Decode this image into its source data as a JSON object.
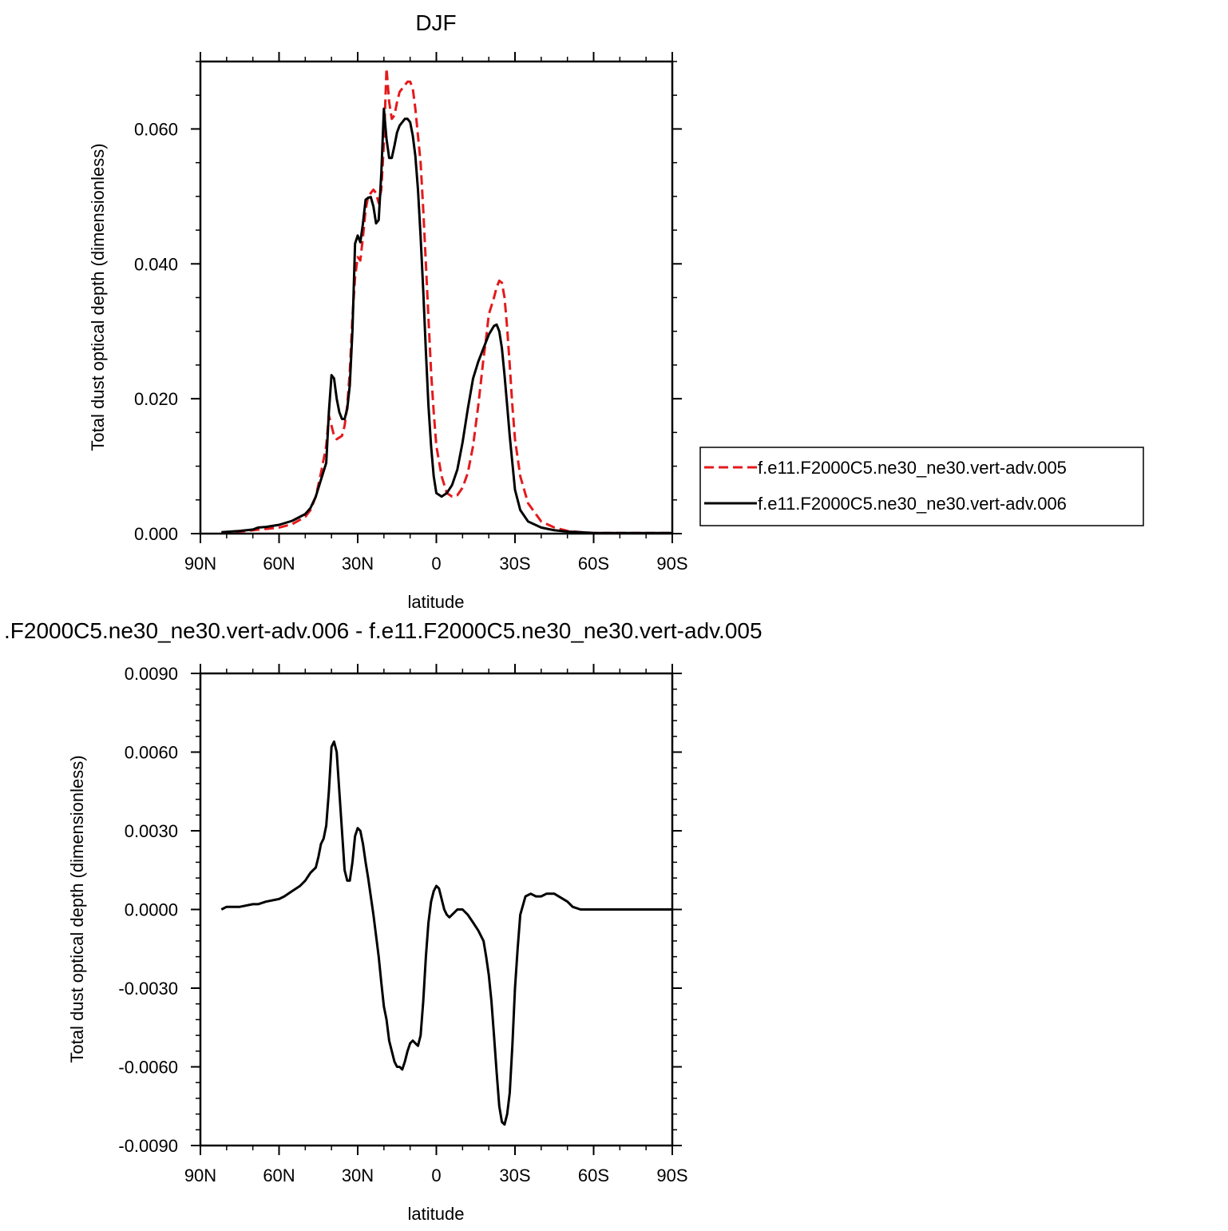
{
  "chart_data": [
    {
      "type": "line",
      "title": "DJF",
      "xlabel": "latitude",
      "ylabel": "Total dust optical depth (dimensionless)",
      "xlim": [
        90,
        -90
      ],
      "ylim": [
        0,
        0.07
      ],
      "x_ticks": [
        90,
        60,
        30,
        0,
        -30,
        -60,
        -90
      ],
      "x_tick_labels": [
        "90N",
        "60N",
        "30N",
        "0",
        "30S",
        "60S",
        "90S"
      ],
      "y_ticks": [
        0,
        0.02,
        0.04,
        0.06
      ],
      "y_tick_labels": [
        "0.000",
        "0.020",
        "0.040",
        "0.060"
      ],
      "grid": false,
      "legend_position": "right",
      "series": [
        {
          "name": "f.e11.F2000C5.ne30_ne30.vert-adv.005",
          "color": "#e41a1c",
          "dash": "dashed",
          "x": [
            82,
            75,
            70,
            65,
            60,
            55,
            50,
            48,
            46,
            44,
            42,
            41,
            40,
            39,
            38,
            36,
            35,
            34,
            33,
            32,
            31,
            30,
            29,
            28,
            27,
            26,
            25,
            24,
            23,
            22,
            21,
            20,
            19,
            18,
            17,
            16,
            15,
            14,
            13,
            12,
            11,
            10,
            9,
            8,
            7,
            6,
            5,
            4,
            3,
            2,
            1,
            0,
            -2,
            -4,
            -6,
            -8,
            -10,
            -12,
            -14,
            -16,
            -18,
            -19,
            -20,
            -22,
            -23,
            -24,
            -25,
            -26,
            -27,
            -28,
            -29,
            -30,
            -32,
            -35,
            -40,
            -45,
            -50,
            -55,
            -60,
            -70,
            -80,
            -90
          ],
          "y": [
            0.0001,
            0.0003,
            0.0005,
            0.0007,
            0.0009,
            0.0014,
            0.0025,
            0.0035,
            0.0055,
            0.009,
            0.013,
            0.0175,
            0.016,
            0.0145,
            0.014,
            0.0145,
            0.016,
            0.019,
            0.024,
            0.032,
            0.038,
            0.041,
            0.0405,
            0.044,
            0.048,
            0.05,
            0.0505,
            0.051,
            0.0505,
            0.049,
            0.051,
            0.058,
            0.069,
            0.064,
            0.0615,
            0.062,
            0.064,
            0.0655,
            0.066,
            0.0665,
            0.067,
            0.067,
            0.066,
            0.063,
            0.059,
            0.055,
            0.048,
            0.04,
            0.032,
            0.024,
            0.018,
            0.013,
            0.0085,
            0.006,
            0.0055,
            0.0057,
            0.0068,
            0.009,
            0.013,
            0.019,
            0.026,
            0.029,
            0.0325,
            0.035,
            0.0365,
            0.0375,
            0.0372,
            0.035,
            0.0305,
            0.025,
            0.019,
            0.014,
            0.0085,
            0.0045,
            0.0018,
            0.0009,
            0.0004,
            0.0002,
            0.0001,
            0.0001,
            0.0001,
            0.0001
          ]
        },
        {
          "name": "f.e11.F2000C5.ne30_ne30.vert-adv.006",
          "color": "#000000",
          "dash": "solid",
          "x": [
            82,
            75,
            70,
            68,
            65,
            60,
            55,
            50,
            48,
            46,
            44,
            42,
            41,
            40,
            39,
            38,
            37,
            36,
            35,
            34,
            33,
            32,
            31,
            30,
            29,
            28,
            27,
            26,
            25,
            24,
            23,
            22,
            21,
            20,
            19,
            18,
            17,
            16,
            15,
            14,
            13,
            12,
            11,
            10,
            9,
            8,
            7,
            6,
            5,
            4,
            3,
            2,
            1,
            0,
            -2,
            -4,
            -6,
            -8,
            -10,
            -12,
            -14,
            -16,
            -18,
            -20,
            -22,
            -23,
            -24,
            -25,
            -26,
            -27,
            -28,
            -29,
            -30,
            -32,
            -35,
            -40,
            -45,
            -50,
            -55,
            -60,
            -70,
            -80,
            -90
          ],
          "y": [
            0.0002,
            0.0004,
            0.0006,
            0.0009,
            0.001,
            0.0013,
            0.0019,
            0.0029,
            0.0038,
            0.0055,
            0.008,
            0.0105,
            0.018,
            0.0235,
            0.023,
            0.02,
            0.018,
            0.017,
            0.017,
            0.0185,
            0.022,
            0.03,
            0.043,
            0.0442,
            0.0432,
            0.046,
            0.0495,
            0.0498,
            0.0499,
            0.0485,
            0.046,
            0.0465,
            0.0535,
            0.063,
            0.0585,
            0.0557,
            0.0557,
            0.0575,
            0.0595,
            0.0605,
            0.061,
            0.0615,
            0.0615,
            0.061,
            0.059,
            0.056,
            0.051,
            0.044,
            0.036,
            0.027,
            0.019,
            0.013,
            0.0085,
            0.006,
            0.0055,
            0.006,
            0.0072,
            0.0095,
            0.0135,
            0.0185,
            0.023,
            0.0255,
            0.0275,
            0.0295,
            0.0308,
            0.031,
            0.03,
            0.0275,
            0.0235,
            0.019,
            0.0145,
            0.0105,
            0.0065,
            0.0035,
            0.0018,
            0.0009,
            0.0005,
            0.0003,
            0.0002,
            0.0001,
            0.0001,
            0.0001,
            0.0001
          ]
        }
      ]
    },
    {
      "type": "line",
      "title": ".F2000C5.ne30_ne30.vert-adv.006 - f.e11.F2000C5.ne30_ne30.vert-adv.005",
      "xlabel": "latitude",
      "ylabel": "Total dust optical depth (dimensionless)",
      "xlim": [
        90,
        -90
      ],
      "ylim": [
        -0.009,
        0.009
      ],
      "x_ticks": [
        90,
        60,
        30,
        0,
        -30,
        -60,
        -90
      ],
      "x_tick_labels": [
        "90N",
        "60N",
        "30N",
        "0",
        "30S",
        "60S",
        "90S"
      ],
      "y_ticks": [
        -0.009,
        -0.006,
        -0.003,
        0,
        0.003,
        0.006,
        0.009
      ],
      "y_tick_labels": [
        "-0.0090",
        "-0.0060",
        "-0.0030",
        "0.0000",
        "0.0030",
        "0.0060",
        "0.0090"
      ],
      "grid": false,
      "series": [
        {
          "color": "#000000",
          "dash": "solid",
          "x": [
            82,
            80,
            75,
            70,
            68,
            65,
            60,
            58,
            55,
            52,
            50,
            48,
            46,
            45,
            44,
            43,
            42,
            41,
            40,
            39,
            38,
            37,
            36,
            35,
            34,
            33,
            32,
            31,
            30,
            29,
            28,
            27,
            26,
            25,
            24,
            23,
            22,
            21,
            20,
            19,
            18,
            16,
            15,
            14,
            13,
            12,
            11,
            10,
            9,
            8,
            7,
            6,
            5,
            4,
            3,
            2,
            1,
            0,
            -1,
            -2,
            -3,
            -4,
            -5,
            -6,
            -7,
            -8,
            -9,
            -10,
            -12,
            -14,
            -16,
            -18,
            -19,
            -20,
            -21,
            -22,
            -23,
            -24,
            -25,
            -26,
            -27,
            -28,
            -29,
            -30,
            -31,
            -32,
            -34,
            -36,
            -38,
            -40,
            -42,
            -45,
            -50,
            -52,
            -55,
            -60,
            -70,
            -80,
            -90
          ],
          "y": [
            0.0,
            0.0001,
            0.0001,
            0.0002,
            0.0002,
            0.0003,
            0.0004,
            0.0005,
            0.0007,
            0.0009,
            0.0011,
            0.0014,
            0.0016,
            0.002,
            0.0025,
            0.0027,
            0.0032,
            0.0045,
            0.0062,
            0.0064,
            0.006,
            0.0045,
            0.003,
            0.0015,
            0.0011,
            0.0011,
            0.0018,
            0.0028,
            0.0031,
            0.003,
            0.0025,
            0.0018,
            0.0012,
            0.0005,
            -0.0002,
            -0.001,
            -0.0018,
            -0.0028,
            -0.0037,
            -0.0042,
            -0.005,
            -0.0058,
            -0.006,
            -0.006,
            -0.0061,
            -0.0058,
            -0.0054,
            -0.0051,
            -0.005,
            -0.0051,
            -0.0052,
            -0.0048,
            -0.0035,
            -0.0018,
            -0.0005,
            0.0003,
            0.0007,
            0.0009,
            0.0008,
            0.0004,
            0.0,
            -0.0002,
            -0.0003,
            -0.0002,
            -0.0001,
            0.0,
            0.0,
            0.0,
            -0.0002,
            -0.0005,
            -0.0008,
            -0.0012,
            -0.0018,
            -0.0025,
            -0.0035,
            -0.0048,
            -0.0062,
            -0.0075,
            -0.0081,
            -0.0082,
            -0.0078,
            -0.007,
            -0.0052,
            -0.003,
            -0.0015,
            -0.0002,
            0.0005,
            0.0006,
            0.0005,
            0.0005,
            0.0006,
            0.0006,
            0.0003,
            0.0001,
            0.0,
            0.0,
            0.0,
            0.0,
            0.0
          ]
        }
      ]
    }
  ]
}
